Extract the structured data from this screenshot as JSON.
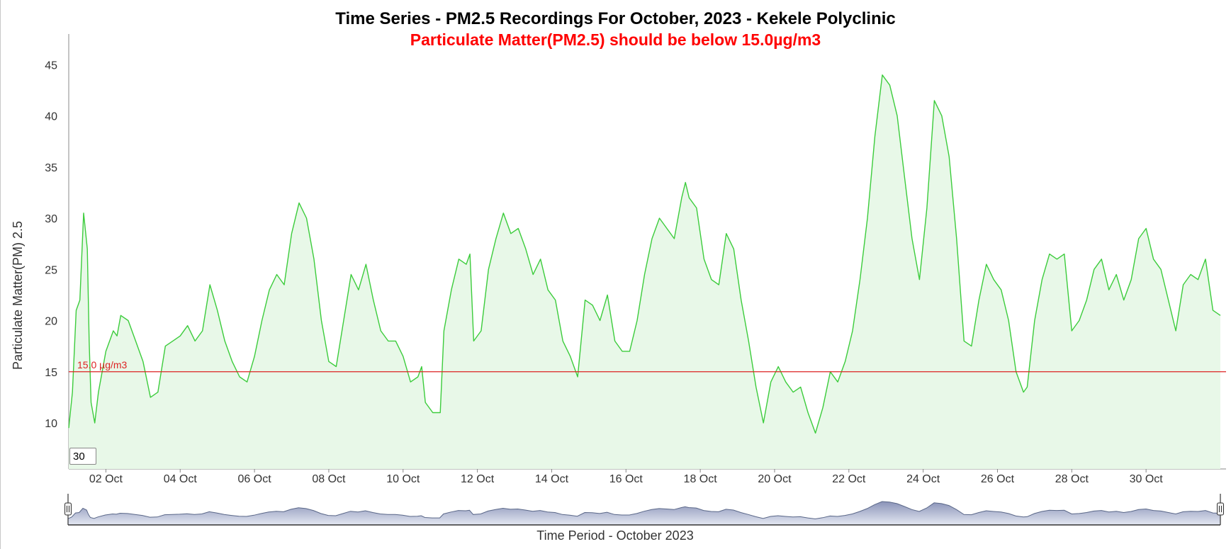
{
  "chart_data": {
    "type": "area",
    "title": "Time Series - PM2.5 Recordings For October, 2023 - Kekele Polyclinic",
    "subtitle": "Particulate Matter(PM2.5) should be below 15.0µg/m3",
    "ylabel": "Particulate Matter(PM) 2.5",
    "xlabel": "Time Period - October 2023",
    "ylim": [
      5.5,
      48
    ],
    "y_ticks": [
      10,
      15,
      20,
      25,
      30,
      35,
      40,
      45
    ],
    "x_tick_labels": [
      "02 Oct",
      "04 Oct",
      "06 Oct",
      "08 Oct",
      "10 Oct",
      "12 Oct",
      "14 Oct",
      "16 Oct",
      "18 Oct",
      "20 Oct",
      "22 Oct",
      "24 Oct",
      "26 Oct",
      "28 Oct",
      "30 Oct"
    ],
    "x_tick_days": [
      2,
      4,
      6,
      8,
      10,
      12,
      14,
      16,
      18,
      20,
      22,
      24,
      26,
      28,
      30
    ],
    "xlim_days": [
      1.0,
      32.0
    ],
    "threshold": {
      "value": 15.0,
      "label": "15.0 µg/m3",
      "color": "#dd2222"
    },
    "series": [
      {
        "color": "#3ccc3c",
        "fill": "#e8f8e8",
        "points": [
          [
            1.0,
            9.5
          ],
          [
            1.1,
            13.0
          ],
          [
            1.2,
            21.0
          ],
          [
            1.3,
            22.0
          ],
          [
            1.4,
            30.5
          ],
          [
            1.5,
            27.0
          ],
          [
            1.55,
            18.0
          ],
          [
            1.6,
            12.0
          ],
          [
            1.7,
            10.0
          ],
          [
            1.8,
            13.0
          ],
          [
            2.0,
            17.0
          ],
          [
            2.2,
            19.0
          ],
          [
            2.3,
            18.5
          ],
          [
            2.4,
            20.5
          ],
          [
            2.6,
            20.0
          ],
          [
            2.8,
            18.0
          ],
          [
            3.0,
            16.0
          ],
          [
            3.2,
            12.5
          ],
          [
            3.4,
            13.0
          ],
          [
            3.6,
            17.5
          ],
          [
            3.8,
            18.0
          ],
          [
            4.0,
            18.5
          ],
          [
            4.2,
            19.5
          ],
          [
            4.4,
            18.0
          ],
          [
            4.6,
            19.0
          ],
          [
            4.8,
            23.5
          ],
          [
            5.0,
            21.0
          ],
          [
            5.2,
            18.0
          ],
          [
            5.4,
            16.0
          ],
          [
            5.6,
            14.5
          ],
          [
            5.8,
            14.0
          ],
          [
            6.0,
            16.5
          ],
          [
            6.2,
            20.0
          ],
          [
            6.4,
            23.0
          ],
          [
            6.6,
            24.5
          ],
          [
            6.8,
            23.5
          ],
          [
            7.0,
            28.5
          ],
          [
            7.2,
            31.5
          ],
          [
            7.4,
            30.0
          ],
          [
            7.6,
            26.0
          ],
          [
            7.8,
            20.0
          ],
          [
            8.0,
            16.0
          ],
          [
            8.2,
            15.5
          ],
          [
            8.4,
            20.0
          ],
          [
            8.6,
            24.5
          ],
          [
            8.8,
            23.0
          ],
          [
            9.0,
            25.5
          ],
          [
            9.2,
            22.0
          ],
          [
            9.4,
            19.0
          ],
          [
            9.6,
            18.0
          ],
          [
            9.8,
            18.0
          ],
          [
            10.0,
            16.5
          ],
          [
            10.2,
            14.0
          ],
          [
            10.4,
            14.5
          ],
          [
            10.5,
            15.5
          ],
          [
            10.6,
            12.0
          ],
          [
            10.8,
            11.0
          ],
          [
            11.0,
            11.0
          ],
          [
            11.1,
            19.0
          ],
          [
            11.3,
            23.0
          ],
          [
            11.5,
            26.0
          ],
          [
            11.7,
            25.5
          ],
          [
            11.8,
            26.5
          ],
          [
            11.9,
            18.0
          ],
          [
            12.1,
            19.0
          ],
          [
            12.3,
            25.0
          ],
          [
            12.5,
            28.0
          ],
          [
            12.7,
            30.5
          ],
          [
            12.9,
            28.5
          ],
          [
            13.1,
            29.0
          ],
          [
            13.3,
            27.0
          ],
          [
            13.5,
            24.5
          ],
          [
            13.7,
            26.0
          ],
          [
            13.9,
            23.0
          ],
          [
            14.1,
            22.0
          ],
          [
            14.3,
            18.0
          ],
          [
            14.5,
            16.5
          ],
          [
            14.7,
            14.5
          ],
          [
            14.9,
            22.0
          ],
          [
            15.1,
            21.5
          ],
          [
            15.3,
            20.0
          ],
          [
            15.5,
            22.5
          ],
          [
            15.7,
            18.0
          ],
          [
            15.9,
            17.0
          ],
          [
            16.1,
            17.0
          ],
          [
            16.3,
            20.0
          ],
          [
            16.5,
            24.5
          ],
          [
            16.7,
            28.0
          ],
          [
            16.9,
            30.0
          ],
          [
            17.1,
            29.0
          ],
          [
            17.3,
            28.0
          ],
          [
            17.5,
            32.0
          ],
          [
            17.6,
            33.5
          ],
          [
            17.7,
            32.0
          ],
          [
            17.9,
            31.0
          ],
          [
            18.1,
            26.0
          ],
          [
            18.3,
            24.0
          ],
          [
            18.5,
            23.5
          ],
          [
            18.7,
            28.5
          ],
          [
            18.9,
            27.0
          ],
          [
            19.1,
            22.0
          ],
          [
            19.3,
            18.0
          ],
          [
            19.5,
            13.5
          ],
          [
            19.7,
            10.0
          ],
          [
            19.9,
            14.0
          ],
          [
            20.1,
            15.5
          ],
          [
            20.3,
            14.0
          ],
          [
            20.5,
            13.0
          ],
          [
            20.7,
            13.5
          ],
          [
            20.9,
            11.0
          ],
          [
            21.1,
            9.0
          ],
          [
            21.3,
            11.5
          ],
          [
            21.5,
            15.0
          ],
          [
            21.7,
            14.0
          ],
          [
            21.9,
            16.0
          ],
          [
            22.1,
            19.0
          ],
          [
            22.3,
            24.0
          ],
          [
            22.5,
            30.0
          ],
          [
            22.7,
            38.0
          ],
          [
            22.9,
            44.0
          ],
          [
            23.1,
            43.0
          ],
          [
            23.3,
            40.0
          ],
          [
            23.5,
            34.0
          ],
          [
            23.7,
            28.0
          ],
          [
            23.9,
            24.0
          ],
          [
            24.1,
            31.0
          ],
          [
            24.3,
            41.5
          ],
          [
            24.5,
            40.0
          ],
          [
            24.7,
            36.0
          ],
          [
            24.9,
            28.0
          ],
          [
            25.1,
            18.0
          ],
          [
            25.3,
            17.5
          ],
          [
            25.5,
            22.0
          ],
          [
            25.7,
            25.5
          ],
          [
            25.9,
            24.0
          ],
          [
            26.1,
            23.0
          ],
          [
            26.3,
            20.0
          ],
          [
            26.5,
            15.0
          ],
          [
            26.7,
            13.0
          ],
          [
            26.8,
            13.5
          ],
          [
            27.0,
            20.0
          ],
          [
            27.2,
            24.0
          ],
          [
            27.4,
            26.5
          ],
          [
            27.6,
            26.0
          ],
          [
            27.8,
            26.5
          ],
          [
            28.0,
            19.0
          ],
          [
            28.2,
            20.0
          ],
          [
            28.4,
            22.0
          ],
          [
            28.6,
            25.0
          ],
          [
            28.8,
            26.0
          ],
          [
            29.0,
            23.0
          ],
          [
            29.2,
            24.5
          ],
          [
            29.4,
            22.0
          ],
          [
            29.6,
            24.0
          ],
          [
            29.8,
            28.0
          ],
          [
            30.0,
            29.0
          ],
          [
            30.2,
            26.0
          ],
          [
            30.4,
            25.0
          ],
          [
            30.6,
            22.0
          ],
          [
            30.8,
            19.0
          ],
          [
            31.0,
            23.5
          ],
          [
            31.2,
            24.5
          ],
          [
            31.4,
            24.0
          ],
          [
            31.6,
            26.0
          ],
          [
            31.8,
            21.0
          ],
          [
            32.0,
            20.5
          ]
        ]
      }
    ]
  },
  "controls": {
    "window_value": "30"
  }
}
